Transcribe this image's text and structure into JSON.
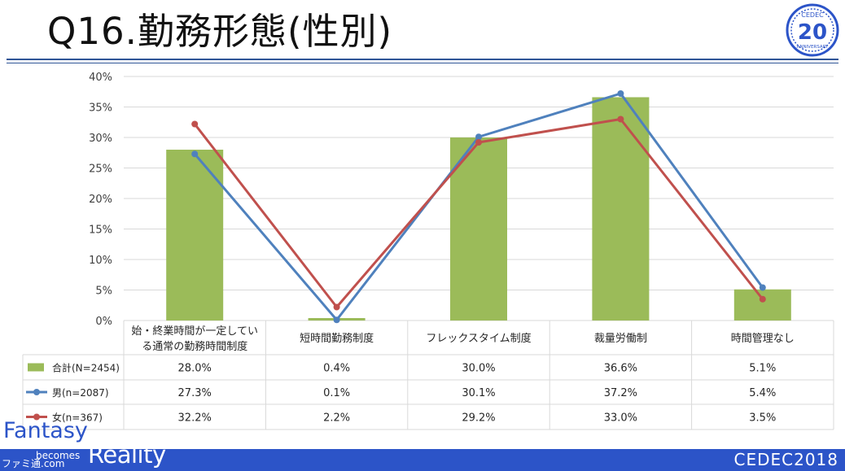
{
  "slide": {
    "title": "Q16.勤務形態(性別)",
    "logo_top_text": "CEDEC",
    "logo_number": "20",
    "logo_bottom_text": "ANNIVERSARY",
    "tagline_word1": "Fantasy",
    "tagline_word2": "becomes",
    "tagline_word3": "Reality",
    "footer_brand": "CEDEC2018",
    "watermark": "ファミ通.com"
  },
  "colors": {
    "bar": "#9bbb59",
    "male": "#4f81bd",
    "female": "#c0504d",
    "accent": "#2c54c8",
    "grid": "#d9d9d9",
    "text": "#404040"
  },
  "chart_data": {
    "type": "bar",
    "categories": [
      [
        "始・終業時間が一定してい",
        "る通常の勤務時間制度"
      ],
      [
        "短時間勤務制度"
      ],
      [
        "フレックスタイム制度"
      ],
      [
        "裁量労働制"
      ],
      [
        "時間管理なし"
      ]
    ],
    "ylim": [
      0,
      40
    ],
    "yticks": [
      "0%",
      "5%",
      "10%",
      "15%",
      "20%",
      "25%",
      "30%",
      "35%",
      "40%"
    ],
    "grid": true,
    "legend_placement": "data-table",
    "series": [
      {
        "name": "合計(N=2454)",
        "kind": "bar",
        "values": [
          28.0,
          0.4,
          30.0,
          36.6,
          5.1
        ],
        "labels": [
          "28.0%",
          "0.4%",
          "30.0%",
          "36.6%",
          "5.1%"
        ]
      },
      {
        "name": "男(n=2087)",
        "kind": "line",
        "values": [
          27.3,
          0.1,
          30.1,
          37.2,
          5.4
        ],
        "labels": [
          "27.3%",
          "0.1%",
          "30.1%",
          "37.2%",
          "5.4%"
        ]
      },
      {
        "name": "女(n=367)",
        "kind": "line",
        "values": [
          32.2,
          2.2,
          29.2,
          33.0,
          3.5
        ],
        "labels": [
          "32.2%",
          "2.2%",
          "29.2%",
          "33.0%",
          "3.5%"
        ]
      }
    ]
  }
}
